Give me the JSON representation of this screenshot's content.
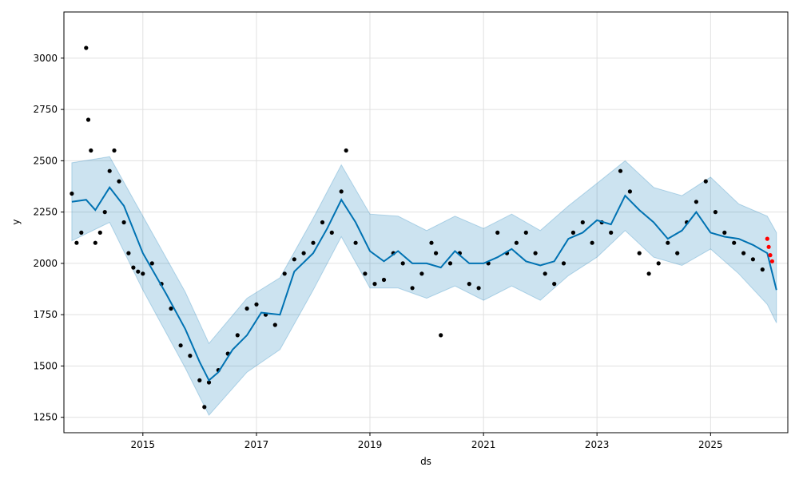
{
  "chart_data": {
    "type": "line",
    "xlabel": "ds",
    "ylabel": "y",
    "x_range": [
      "2013-08-11",
      "2026-05-13"
    ],
    "ylim": [
      1175,
      3225
    ],
    "xticks": [
      "2015",
      "2017",
      "2019",
      "2021",
      "2023",
      "2025"
    ],
    "yticks": [
      1250,
      1500,
      1750,
      2000,
      2250,
      2500,
      2750,
      3000
    ],
    "grid": true,
    "colors": {
      "observed": "#000000",
      "forecast_line": "#0072B2",
      "uncertainty_band": "#0072B2",
      "recent_points": "#ff0000"
    },
    "series": [
      {
        "name": "",
        "role": "trend-forecast",
        "x": [
          "2013-10-01",
          "2014-01-01",
          "2014-03-01",
          "2014-06-01",
          "2014-09-01",
          "2015-01-01",
          "2015-06-01",
          "2015-10-01",
          "2016-01-01",
          "2016-03-01",
          "2016-05-01",
          "2016-08-01",
          "2016-11-01",
          "2017-02-01",
          "2017-06-01",
          "2017-09-01",
          "2018-01-01",
          "2018-04-01",
          "2018-07-01",
          "2018-10-01",
          "2019-01-01",
          "2019-04-01",
          "2019-07-01",
          "2019-10-01",
          "2020-01-01",
          "2020-04-01",
          "2020-07-01",
          "2020-10-01",
          "2021-01-01",
          "2021-04-01",
          "2021-07-01",
          "2021-10-01",
          "2022-01-01",
          "2022-04-01",
          "2022-07-01",
          "2022-10-01",
          "2023-01-01",
          "2023-04-01",
          "2023-07-01",
          "2023-10-01",
          "2024-01-01",
          "2024-04-01",
          "2024-07-01",
          "2024-10-01",
          "2025-01-01",
          "2025-04-01",
          "2025-07-01",
          "2025-10-01",
          "2026-01-01",
          "2026-03-01"
        ],
        "y": [
          2300,
          2310,
          2260,
          2370,
          2280,
          2050,
          1850,
          1680,
          1520,
          1430,
          1470,
          1580,
          1650,
          1760,
          1750,
          1960,
          2050,
          2170,
          2310,
          2200,
          2060,
          2010,
          2060,
          2000,
          2000,
          1980,
          2060,
          2000,
          2000,
          2030,
          2070,
          2010,
          1990,
          2010,
          2120,
          2150,
          2210,
          2190,
          2330,
          2260,
          2200,
          2120,
          2160,
          2250,
          2150,
          2130,
          2120,
          2090,
          2050,
          1870
        ]
      },
      {
        "name": "",
        "role": "uncertainty-upper",
        "x": [
          "2013-10-01",
          "2014-06-01",
          "2015-01-01",
          "2015-10-01",
          "2016-03-01",
          "2016-11-01",
          "2017-06-01",
          "2018-01-01",
          "2018-07-01",
          "2019-01-01",
          "2019-07-01",
          "2020-01-01",
          "2020-07-01",
          "2021-01-01",
          "2021-07-01",
          "2022-01-01",
          "2022-07-01",
          "2023-01-01",
          "2023-07-01",
          "2024-01-01",
          "2024-07-01",
          "2025-01-01",
          "2025-07-01",
          "2026-01-01",
          "2026-03-01"
        ],
        "y": [
          2490,
          2520,
          2230,
          1860,
          1610,
          1830,
          1930,
          2220,
          2480,
          2240,
          2230,
          2160,
          2230,
          2170,
          2240,
          2160,
          2280,
          2390,
          2500,
          2370,
          2330,
          2420,
          2290,
          2230,
          2150
        ]
      },
      {
        "name": "",
        "role": "uncertainty-lower",
        "x": [
          "2013-10-01",
          "2014-06-01",
          "2015-01-01",
          "2015-10-01",
          "2016-03-01",
          "2016-11-01",
          "2017-06-01",
          "2018-01-01",
          "2018-07-01",
          "2019-01-01",
          "2019-07-01",
          "2020-01-01",
          "2020-07-01",
          "2021-01-01",
          "2021-07-01",
          "2022-01-01",
          "2022-07-01",
          "2023-01-01",
          "2023-07-01",
          "2024-01-01",
          "2024-07-01",
          "2025-01-01",
          "2025-07-01",
          "2026-01-01",
          "2026-03-01"
        ],
        "y": [
          2110,
          2200,
          1870,
          1490,
          1260,
          1470,
          1580,
          1870,
          2130,
          1880,
          1880,
          1830,
          1890,
          1820,
          1890,
          1820,
          1940,
          2030,
          2160,
          2030,
          1990,
          2070,
          1950,
          1800,
          1710
        ]
      },
      {
        "name": "",
        "role": "observed-points",
        "x": [
          "2013-10-01",
          "2013-11-01",
          "2013-12-01",
          "2014-01-01",
          "2014-01-15",
          "2014-02-01",
          "2014-03-01",
          "2014-04-01",
          "2014-05-01",
          "2014-06-01",
          "2014-07-01",
          "2014-08-01",
          "2014-09-01",
          "2014-10-01",
          "2014-11-01",
          "2014-12-01",
          "2015-01-01",
          "2015-03-01",
          "2015-05-01",
          "2015-07-01",
          "2015-09-01",
          "2015-11-01",
          "2016-01-01",
          "2016-02-01",
          "2016-03-01",
          "2016-05-01",
          "2016-07-01",
          "2016-09-01",
          "2016-11-01",
          "2017-01-01",
          "2017-03-01",
          "2017-05-01",
          "2017-07-01",
          "2017-09-01",
          "2017-11-01",
          "2018-01-01",
          "2018-03-01",
          "2018-05-01",
          "2018-07-01",
          "2018-08-01",
          "2018-10-01",
          "2018-12-01",
          "2019-02-01",
          "2019-04-01",
          "2019-06-01",
          "2019-08-01",
          "2019-10-01",
          "2019-12-01",
          "2020-02-01",
          "2020-03-01",
          "2020-04-01",
          "2020-06-01",
          "2020-08-01",
          "2020-10-01",
          "2020-12-01",
          "2021-02-01",
          "2021-04-01",
          "2021-06-01",
          "2021-08-01",
          "2021-10-01",
          "2021-12-01",
          "2022-02-01",
          "2022-04-01",
          "2022-06-01",
          "2022-08-01",
          "2022-10-01",
          "2022-12-01",
          "2023-02-01",
          "2023-04-01",
          "2023-06-01",
          "2023-08-01",
          "2023-10-01",
          "2023-12-01",
          "2024-02-01",
          "2024-04-01",
          "2024-06-01",
          "2024-08-01",
          "2024-10-01",
          "2024-12-01",
          "2025-02-01",
          "2025-04-01",
          "2025-06-01",
          "2025-08-01",
          "2025-10-01",
          "2025-12-01"
        ],
        "y": [
          2340,
          2100,
          2150,
          3050,
          2700,
          2550,
          2100,
          2150,
          2250,
          2450,
          2550,
          2400,
          2200,
          2050,
          1980,
          1960,
          1950,
          2000,
          1900,
          1780,
          1600,
          1550,
          1430,
          1300,
          1420,
          1480,
          1560,
          1650,
          1780,
          1800,
          1750,
          1700,
          1950,
          2020,
          2050,
          2100,
          2200,
          2150,
          2350,
          2550,
          2100,
          1950,
          1900,
          1920,
          2050,
          2000,
          1880,
          1950,
          2100,
          2050,
          1650,
          2000,
          2050,
          1900,
          1880,
          2000,
          2150,
          2050,
          2100,
          2150,
          2050,
          1950,
          1900,
          2000,
          2150,
          2200,
          2100,
          2200,
          2150,
          2450,
          2350,
          2050,
          1950,
          2000,
          2100,
          2050,
          2200,
          2300,
          2400,
          2250,
          2150,
          2100,
          2050,
          2020,
          1970
        ]
      },
      {
        "name": "",
        "role": "recent-points",
        "x": [
          "2026-01-01",
          "2026-01-10",
          "2026-01-20",
          "2026-02-01"
        ],
        "y": [
          2120,
          2080,
          2040,
          2010
        ]
      }
    ]
  }
}
